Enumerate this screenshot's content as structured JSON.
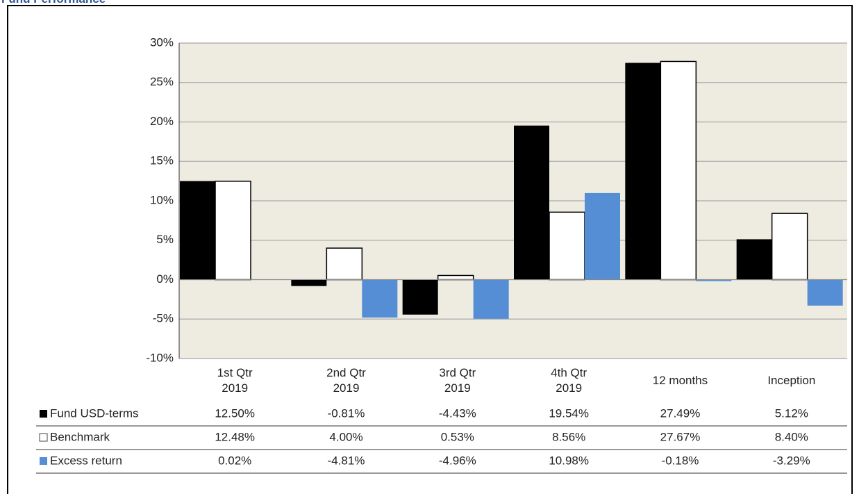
{
  "chart_data": {
    "type": "bar",
    "title": "Fund Performance",
    "categories": [
      "1st Qtr 2019",
      "2nd Qtr 2019",
      "3rd Qtr 2019",
      "4th Qtr 2019",
      "12 months",
      "Inception"
    ],
    "series": [
      {
        "name": "Fund USD-terms",
        "color": "#000000",
        "values": [
          12.5,
          -0.81,
          -4.43,
          19.54,
          27.49,
          5.12
        ],
        "value_labels": [
          "12.50%",
          "-0.81%",
          "-4.43%",
          "19.54%",
          "27.49%",
          "5.12%"
        ]
      },
      {
        "name": "Benchmark",
        "color": "#ffffff",
        "values": [
          12.48,
          4.0,
          0.53,
          8.56,
          27.67,
          8.4
        ],
        "value_labels": [
          "12.48%",
          "4.00%",
          "0.53%",
          "8.56%",
          "27.67%",
          "8.40%"
        ]
      },
      {
        "name": "Excess return",
        "color": "#558ed5",
        "values": [
          0.02,
          -4.81,
          -4.96,
          10.98,
          -0.18,
          -3.29
        ],
        "value_labels": [
          "0.02%",
          "-4.81%",
          "-4.96%",
          "10.98%",
          "-0.18%",
          "-3.29%"
        ]
      }
    ],
    "ylim": [
      -10,
      30
    ],
    "yticks": [
      {
        "value": -10,
        "label": "-10%"
      },
      {
        "value": -5,
        "label": "-5%"
      },
      {
        "value": 0,
        "label": "0%"
      },
      {
        "value": 5,
        "label": "5%"
      },
      {
        "value": 10,
        "label": "10%"
      },
      {
        "value": 15,
        "label": "15%"
      },
      {
        "value": 20,
        "label": "20%"
      },
      {
        "value": 25,
        "label": "25%"
      },
      {
        "value": 30,
        "label": "30%"
      }
    ],
    "grid": true
  }
}
